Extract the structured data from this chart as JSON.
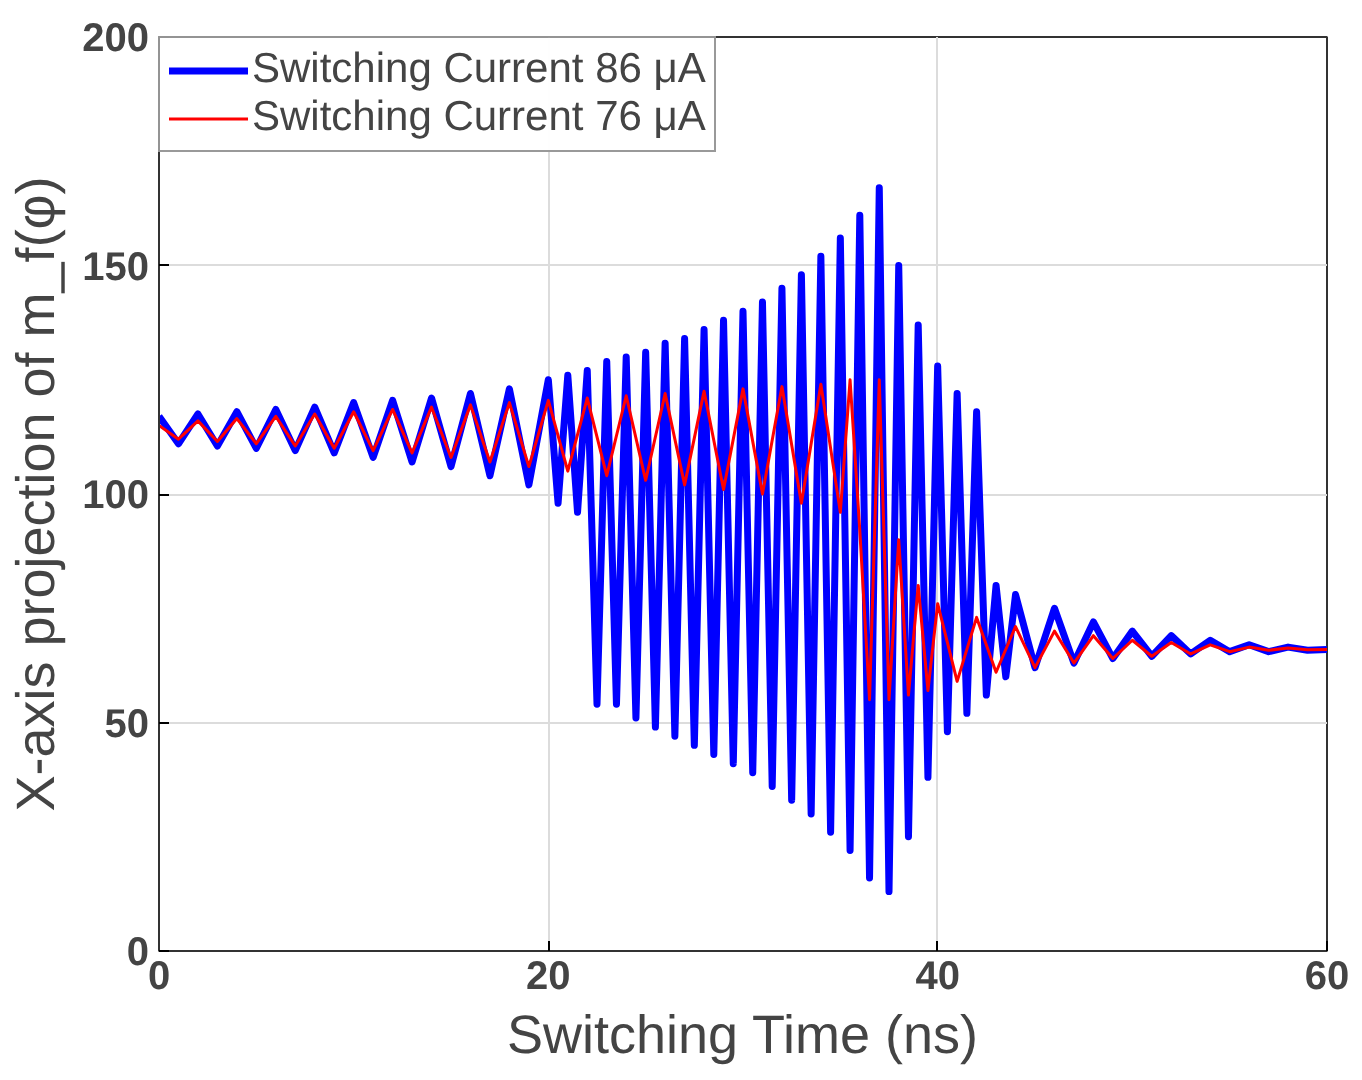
{
  "chart_data": {
    "type": "line",
    "xlabel": "Switching Time (ns)",
    "ylabel": "X-axis projection of m_f(φ)",
    "xlim": [
      0,
      60
    ],
    "xticks": [
      0,
      20,
      40,
      60
    ],
    "ylim": [
      0,
      200
    ],
    "yticks": [
      0,
      50,
      100,
      150,
      200
    ],
    "grid": true,
    "legend": "top left",
    "line_style": "solid",
    "series": [
      {
        "name": "Switching Current 86 μA",
        "color": "#0000ff",
        "x": [
          0,
          1,
          2,
          3,
          4,
          5,
          6,
          7,
          8,
          9,
          10,
          11,
          12,
          13,
          14,
          15,
          16,
          17,
          18,
          19,
          20,
          20.5,
          21,
          21.5,
          22,
          22.5,
          23,
          23.5,
          24,
          24.5,
          25,
          25.5,
          26,
          26.5,
          27,
          27.5,
          28,
          28.5,
          29,
          29.5,
          30,
          30.5,
          31,
          31.5,
          32,
          32.5,
          33,
          33.5,
          34,
          34.5,
          35,
          35.5,
          36,
          36.5,
          37,
          37.5,
          38,
          38.5,
          39,
          39.5,
          40,
          40.5,
          41,
          41.5,
          42,
          42.5,
          43,
          43.5,
          44,
          45,
          46,
          47,
          48,
          49,
          50,
          51,
          52,
          53,
          54,
          55,
          56,
          57,
          58,
          59,
          60
        ],
        "values": [
          117,
          111,
          117.5,
          110.5,
          118,
          110,
          118.5,
          109.5,
          119,
          109,
          120,
          108,
          120.5,
          107,
          121,
          106,
          122,
          104,
          123,
          102,
          125,
          98,
          126,
          96,
          127,
          54,
          129,
          54,
          130,
          51,
          131,
          49,
          133,
          47,
          134,
          45,
          136,
          43,
          138,
          41,
          140,
          39,
          142,
          36,
          145,
          33,
          148,
          30,
          152,
          26,
          156,
          22,
          161,
          16,
          167,
          13,
          150,
          25,
          137,
          38,
          128,
          48,
          122,
          52,
          118,
          56,
          80,
          60,
          78,
          62,
          75,
          63,
          72,
          64,
          70,
          64.5,
          69,
          65,
          68,
          65.5,
          67,
          65.5,
          66.5,
          65.8,
          66
        ]
      },
      {
        "name": "Switching Current 76 μA",
        "color": "#ff0000",
        "x": [
          0,
          1,
          2,
          3,
          4,
          5,
          6,
          7,
          8,
          9,
          10,
          11,
          12,
          13,
          14,
          15,
          16,
          17,
          18,
          19,
          20,
          21,
          22,
          23,
          24,
          25,
          26,
          27,
          28,
          29,
          30,
          31,
          32,
          33,
          34,
          35,
          35.5,
          36,
          36.5,
          37,
          37.5,
          38,
          38.5,
          39,
          39.5,
          40,
          41,
          42,
          43,
          44,
          45,
          46,
          47,
          48,
          49,
          50,
          51,
          52,
          53,
          54,
          55,
          56,
          57,
          58,
          59,
          60
        ],
        "values": [
          115,
          112,
          116,
          111.5,
          116.5,
          111,
          117,
          110.5,
          117.5,
          110,
          118,
          109.5,
          118.5,
          109,
          119,
          108,
          119.5,
          107,
          120,
          106,
          120.5,
          105,
          121,
          104,
          121.5,
          103,
          122,
          102,
          122.5,
          101,
          123,
          100,
          123.5,
          98,
          124,
          96,
          125,
          92,
          55,
          125,
          55,
          90,
          56,
          80,
          57,
          76,
          59,
          73,
          61,
          71,
          62,
          70,
          63,
          69,
          64,
          68,
          64.5,
          67.5,
          65,
          67,
          65.5,
          66.5,
          65.8,
          66.3,
          65.9,
          66
        ]
      }
    ]
  }
}
